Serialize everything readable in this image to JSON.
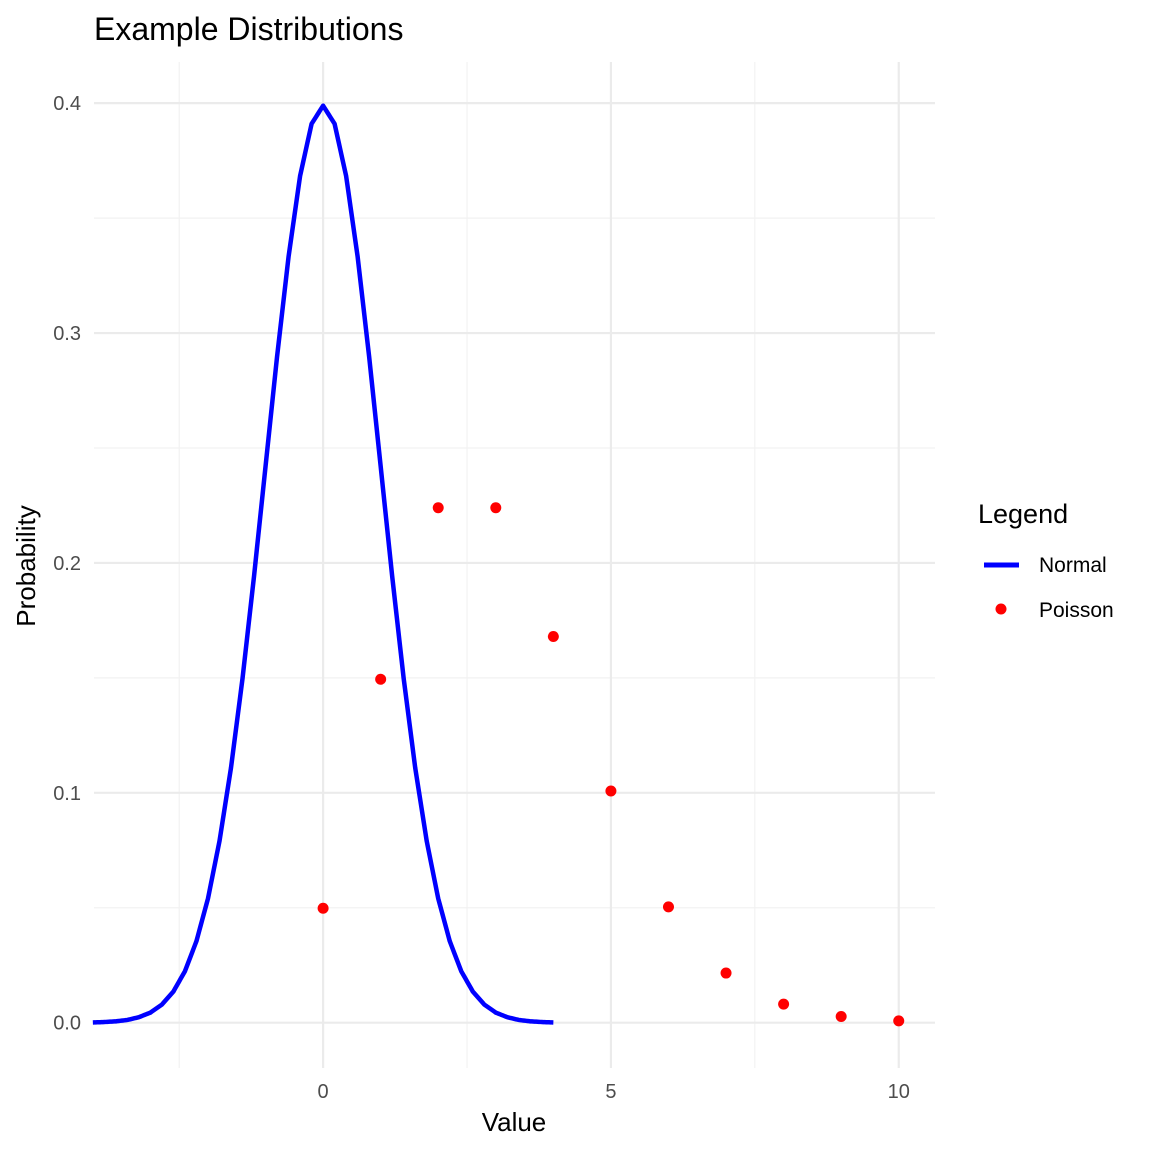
{
  "chart_data": {
    "type": "line",
    "title": "Example Distributions",
    "xlabel": "Value",
    "ylabel": "Probability",
    "xlim": [
      -3.98,
      10.63
    ],
    "ylim": [
      -0.0197,
      0.4179
    ],
    "x_ticks": [
      0,
      5,
      10
    ],
    "x_tick_labels": [
      "0",
      "5",
      "10"
    ],
    "x_minor_ticks": [
      -2.5,
      2.5,
      7.5
    ],
    "y_ticks": [
      0.0,
      0.1,
      0.2,
      0.3,
      0.4
    ],
    "y_tick_labels": [
      "0.0",
      "0.1",
      "0.2",
      "0.3",
      "0.4"
    ],
    "y_minor_ticks": [
      0.05,
      0.15,
      0.25,
      0.35
    ],
    "grid": true,
    "legend": {
      "title": "Legend",
      "position": "right",
      "entries": [
        {
          "label": "Normal",
          "kind": "line",
          "color": "#0000ff"
        },
        {
          "label": "Poisson",
          "kind": "point",
          "color": "#ff0000"
        }
      ]
    },
    "series": [
      {
        "name": "Normal",
        "kind": "line",
        "color": "#0000ff",
        "x": [
          -4,
          -3.8,
          -3.6,
          -3.4,
          -3.2,
          -3,
          -2.8,
          -2.6,
          -2.4,
          -2.2,
          -2,
          -1.8,
          -1.6,
          -1.4,
          -1.2,
          -1,
          -0.8,
          -0.6,
          -0.4,
          -0.2,
          0,
          0.2,
          0.4,
          0.6,
          0.8,
          1,
          1.2,
          1.4,
          1.6,
          1.8,
          2,
          2.2,
          2.4,
          2.6,
          2.8,
          3,
          3.2,
          3.4,
          3.6,
          3.8,
          4
        ],
        "y": [
          0.0001,
          0.0003,
          0.0006,
          0.0012,
          0.0024,
          0.0044,
          0.0079,
          0.0136,
          0.0224,
          0.0355,
          0.054,
          0.079,
          0.1109,
          0.1497,
          0.1942,
          0.242,
          0.2897,
          0.3332,
          0.3683,
          0.391,
          0.3989,
          0.391,
          0.3683,
          0.3332,
          0.2897,
          0.242,
          0.1942,
          0.1497,
          0.1109,
          0.079,
          0.054,
          0.0355,
          0.0224,
          0.0136,
          0.0079,
          0.0044,
          0.0024,
          0.0012,
          0.0006,
          0.0003,
          0.0001
        ]
      },
      {
        "name": "Poisson",
        "kind": "point",
        "color": "#ff0000",
        "x": [
          0,
          1,
          2,
          3,
          4,
          5,
          6,
          7,
          8,
          9,
          10
        ],
        "y": [
          0.0498,
          0.1494,
          0.224,
          0.224,
          0.168,
          0.1008,
          0.0504,
          0.0216,
          0.0081,
          0.0027,
          0.0008
        ]
      }
    ]
  }
}
